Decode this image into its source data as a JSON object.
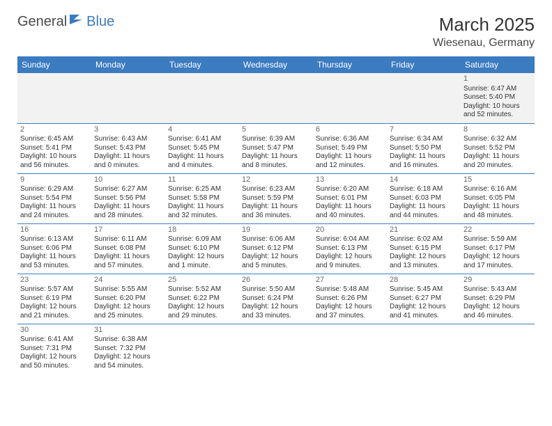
{
  "logo": {
    "part1": "General",
    "part2": "Blue"
  },
  "title": "March 2025",
  "location": "Wiesenau, Germany",
  "day_headers": [
    "Sunday",
    "Monday",
    "Tuesday",
    "Wednesday",
    "Thursday",
    "Friday",
    "Saturday"
  ],
  "colors": {
    "header_bg": "#3b7bbf",
    "header_text": "#ffffff",
    "border": "#3b7bbf",
    "week1_bg": "#f2f2f2",
    "text": "#333333"
  },
  "weeks": [
    [
      null,
      null,
      null,
      null,
      null,
      null,
      {
        "n": "1",
        "sr": "Sunrise: 6:47 AM",
        "ss": "Sunset: 5:40 PM",
        "d1": "Daylight: 10 hours",
        "d2": "and 52 minutes."
      }
    ],
    [
      {
        "n": "2",
        "sr": "Sunrise: 6:45 AM",
        "ss": "Sunset: 5:41 PM",
        "d1": "Daylight: 10 hours",
        "d2": "and 56 minutes."
      },
      {
        "n": "3",
        "sr": "Sunrise: 6:43 AM",
        "ss": "Sunset: 5:43 PM",
        "d1": "Daylight: 11 hours",
        "d2": "and 0 minutes."
      },
      {
        "n": "4",
        "sr": "Sunrise: 6:41 AM",
        "ss": "Sunset: 5:45 PM",
        "d1": "Daylight: 11 hours",
        "d2": "and 4 minutes."
      },
      {
        "n": "5",
        "sr": "Sunrise: 6:39 AM",
        "ss": "Sunset: 5:47 PM",
        "d1": "Daylight: 11 hours",
        "d2": "and 8 minutes."
      },
      {
        "n": "6",
        "sr": "Sunrise: 6:36 AM",
        "ss": "Sunset: 5:49 PM",
        "d1": "Daylight: 11 hours",
        "d2": "and 12 minutes."
      },
      {
        "n": "7",
        "sr": "Sunrise: 6:34 AM",
        "ss": "Sunset: 5:50 PM",
        "d1": "Daylight: 11 hours",
        "d2": "and 16 minutes."
      },
      {
        "n": "8",
        "sr": "Sunrise: 6:32 AM",
        "ss": "Sunset: 5:52 PM",
        "d1": "Daylight: 11 hours",
        "d2": "and 20 minutes."
      }
    ],
    [
      {
        "n": "9",
        "sr": "Sunrise: 6:29 AM",
        "ss": "Sunset: 5:54 PM",
        "d1": "Daylight: 11 hours",
        "d2": "and 24 minutes."
      },
      {
        "n": "10",
        "sr": "Sunrise: 6:27 AM",
        "ss": "Sunset: 5:56 PM",
        "d1": "Daylight: 11 hours",
        "d2": "and 28 minutes."
      },
      {
        "n": "11",
        "sr": "Sunrise: 6:25 AM",
        "ss": "Sunset: 5:58 PM",
        "d1": "Daylight: 11 hours",
        "d2": "and 32 minutes."
      },
      {
        "n": "12",
        "sr": "Sunrise: 6:23 AM",
        "ss": "Sunset: 5:59 PM",
        "d1": "Daylight: 11 hours",
        "d2": "and 36 minutes."
      },
      {
        "n": "13",
        "sr": "Sunrise: 6:20 AM",
        "ss": "Sunset: 6:01 PM",
        "d1": "Daylight: 11 hours",
        "d2": "and 40 minutes."
      },
      {
        "n": "14",
        "sr": "Sunrise: 6:18 AM",
        "ss": "Sunset: 6:03 PM",
        "d1": "Daylight: 11 hours",
        "d2": "and 44 minutes."
      },
      {
        "n": "15",
        "sr": "Sunrise: 6:16 AM",
        "ss": "Sunset: 6:05 PM",
        "d1": "Daylight: 11 hours",
        "d2": "and 48 minutes."
      }
    ],
    [
      {
        "n": "16",
        "sr": "Sunrise: 6:13 AM",
        "ss": "Sunset: 6:06 PM",
        "d1": "Daylight: 11 hours",
        "d2": "and 53 minutes."
      },
      {
        "n": "17",
        "sr": "Sunrise: 6:11 AM",
        "ss": "Sunset: 6:08 PM",
        "d1": "Daylight: 11 hours",
        "d2": "and 57 minutes."
      },
      {
        "n": "18",
        "sr": "Sunrise: 6:09 AM",
        "ss": "Sunset: 6:10 PM",
        "d1": "Daylight: 12 hours",
        "d2": "and 1 minute."
      },
      {
        "n": "19",
        "sr": "Sunrise: 6:06 AM",
        "ss": "Sunset: 6:12 PM",
        "d1": "Daylight: 12 hours",
        "d2": "and 5 minutes."
      },
      {
        "n": "20",
        "sr": "Sunrise: 6:04 AM",
        "ss": "Sunset: 6:13 PM",
        "d1": "Daylight: 12 hours",
        "d2": "and 9 minutes."
      },
      {
        "n": "21",
        "sr": "Sunrise: 6:02 AM",
        "ss": "Sunset: 6:15 PM",
        "d1": "Daylight: 12 hours",
        "d2": "and 13 minutes."
      },
      {
        "n": "22",
        "sr": "Sunrise: 5:59 AM",
        "ss": "Sunset: 6:17 PM",
        "d1": "Daylight: 12 hours",
        "d2": "and 17 minutes."
      }
    ],
    [
      {
        "n": "23",
        "sr": "Sunrise: 5:57 AM",
        "ss": "Sunset: 6:19 PM",
        "d1": "Daylight: 12 hours",
        "d2": "and 21 minutes."
      },
      {
        "n": "24",
        "sr": "Sunrise: 5:55 AM",
        "ss": "Sunset: 6:20 PM",
        "d1": "Daylight: 12 hours",
        "d2": "and 25 minutes."
      },
      {
        "n": "25",
        "sr": "Sunrise: 5:52 AM",
        "ss": "Sunset: 6:22 PM",
        "d1": "Daylight: 12 hours",
        "d2": "and 29 minutes."
      },
      {
        "n": "26",
        "sr": "Sunrise: 5:50 AM",
        "ss": "Sunset: 6:24 PM",
        "d1": "Daylight: 12 hours",
        "d2": "and 33 minutes."
      },
      {
        "n": "27",
        "sr": "Sunrise: 5:48 AM",
        "ss": "Sunset: 6:26 PM",
        "d1": "Daylight: 12 hours",
        "d2": "and 37 minutes."
      },
      {
        "n": "28",
        "sr": "Sunrise: 5:45 AM",
        "ss": "Sunset: 6:27 PM",
        "d1": "Daylight: 12 hours",
        "d2": "and 41 minutes."
      },
      {
        "n": "29",
        "sr": "Sunrise: 5:43 AM",
        "ss": "Sunset: 6:29 PM",
        "d1": "Daylight: 12 hours",
        "d2": "and 46 minutes."
      }
    ],
    [
      {
        "n": "30",
        "sr": "Sunrise: 6:41 AM",
        "ss": "Sunset: 7:31 PM",
        "d1": "Daylight: 12 hours",
        "d2": "and 50 minutes."
      },
      {
        "n": "31",
        "sr": "Sunrise: 6:38 AM",
        "ss": "Sunset: 7:32 PM",
        "d1": "Daylight: 12 hours",
        "d2": "and 54 minutes."
      },
      null,
      null,
      null,
      null,
      null
    ]
  ]
}
